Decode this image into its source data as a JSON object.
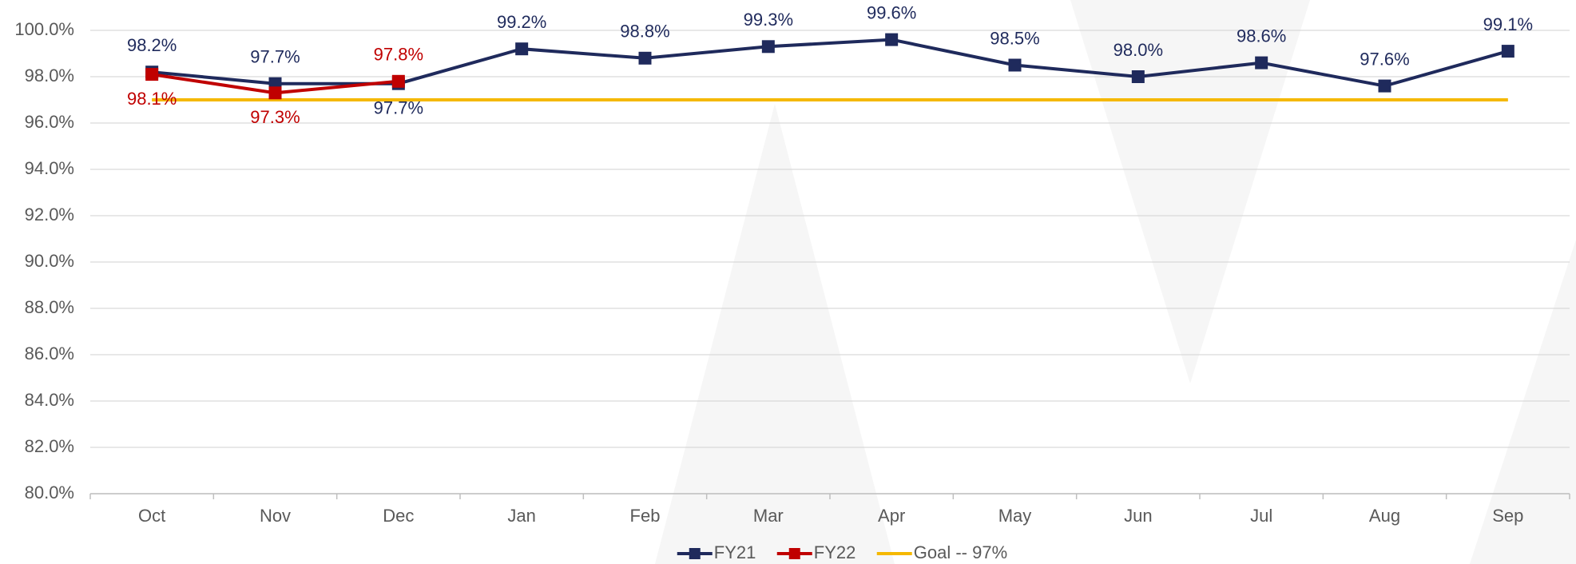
{
  "chart_data": {
    "type": "line",
    "categories": [
      "Oct",
      "Nov",
      "Dec",
      "Jan",
      "Feb",
      "Mar",
      "Apr",
      "May",
      "Jun",
      "Jul",
      "Aug",
      "Sep"
    ],
    "series": [
      {
        "name": "FY21",
        "color": "#1f2a5c",
        "marker": "square",
        "values": [
          98.2,
          97.7,
          97.7,
          99.2,
          98.8,
          99.3,
          99.6,
          98.5,
          98.0,
          98.6,
          97.6,
          99.1
        ],
        "value_labels": [
          "98.2%",
          "97.7%",
          "97.7%",
          "99.2%",
          "98.8%",
          "99.3%",
          "99.6%",
          "98.5%",
          "98.0%",
          "98.6%",
          "97.6%",
          "99.1%"
        ]
      },
      {
        "name": "FY22",
        "color": "#c00000",
        "marker": "square",
        "values": [
          98.1,
          97.3,
          97.8,
          null,
          null,
          null,
          null,
          null,
          null,
          null,
          null,
          null
        ],
        "value_labels": [
          "98.1%",
          "97.3%",
          "97.8%",
          null,
          null,
          null,
          null,
          null,
          null,
          null,
          null,
          null
        ]
      },
      {
        "name": "Goal -- 97%",
        "color": "#f5b800",
        "marker": "none",
        "values": [
          97,
          97,
          97,
          97,
          97,
          97,
          97,
          97,
          97,
          97,
          97,
          97
        ]
      }
    ],
    "ylim": [
      80,
      100
    ],
    "yticks": [
      {
        "value": 80,
        "label": "80.0%"
      },
      {
        "value": 82,
        "label": "82.0%"
      },
      {
        "value": 84,
        "label": "84.0%"
      },
      {
        "value": 86,
        "label": "86.0%"
      },
      {
        "value": 88,
        "label": "88.0%"
      },
      {
        "value": 90,
        "label": "90.0%"
      },
      {
        "value": 92,
        "label": "92.0%"
      },
      {
        "value": 94,
        "label": "94.0%"
      },
      {
        "value": 96,
        "label": "96.0%"
      },
      {
        "value": 98,
        "label": "98.0%"
      },
      {
        "value": 100,
        "label": "100.0%"
      }
    ],
    "grid": true,
    "legend": "bottom"
  }
}
